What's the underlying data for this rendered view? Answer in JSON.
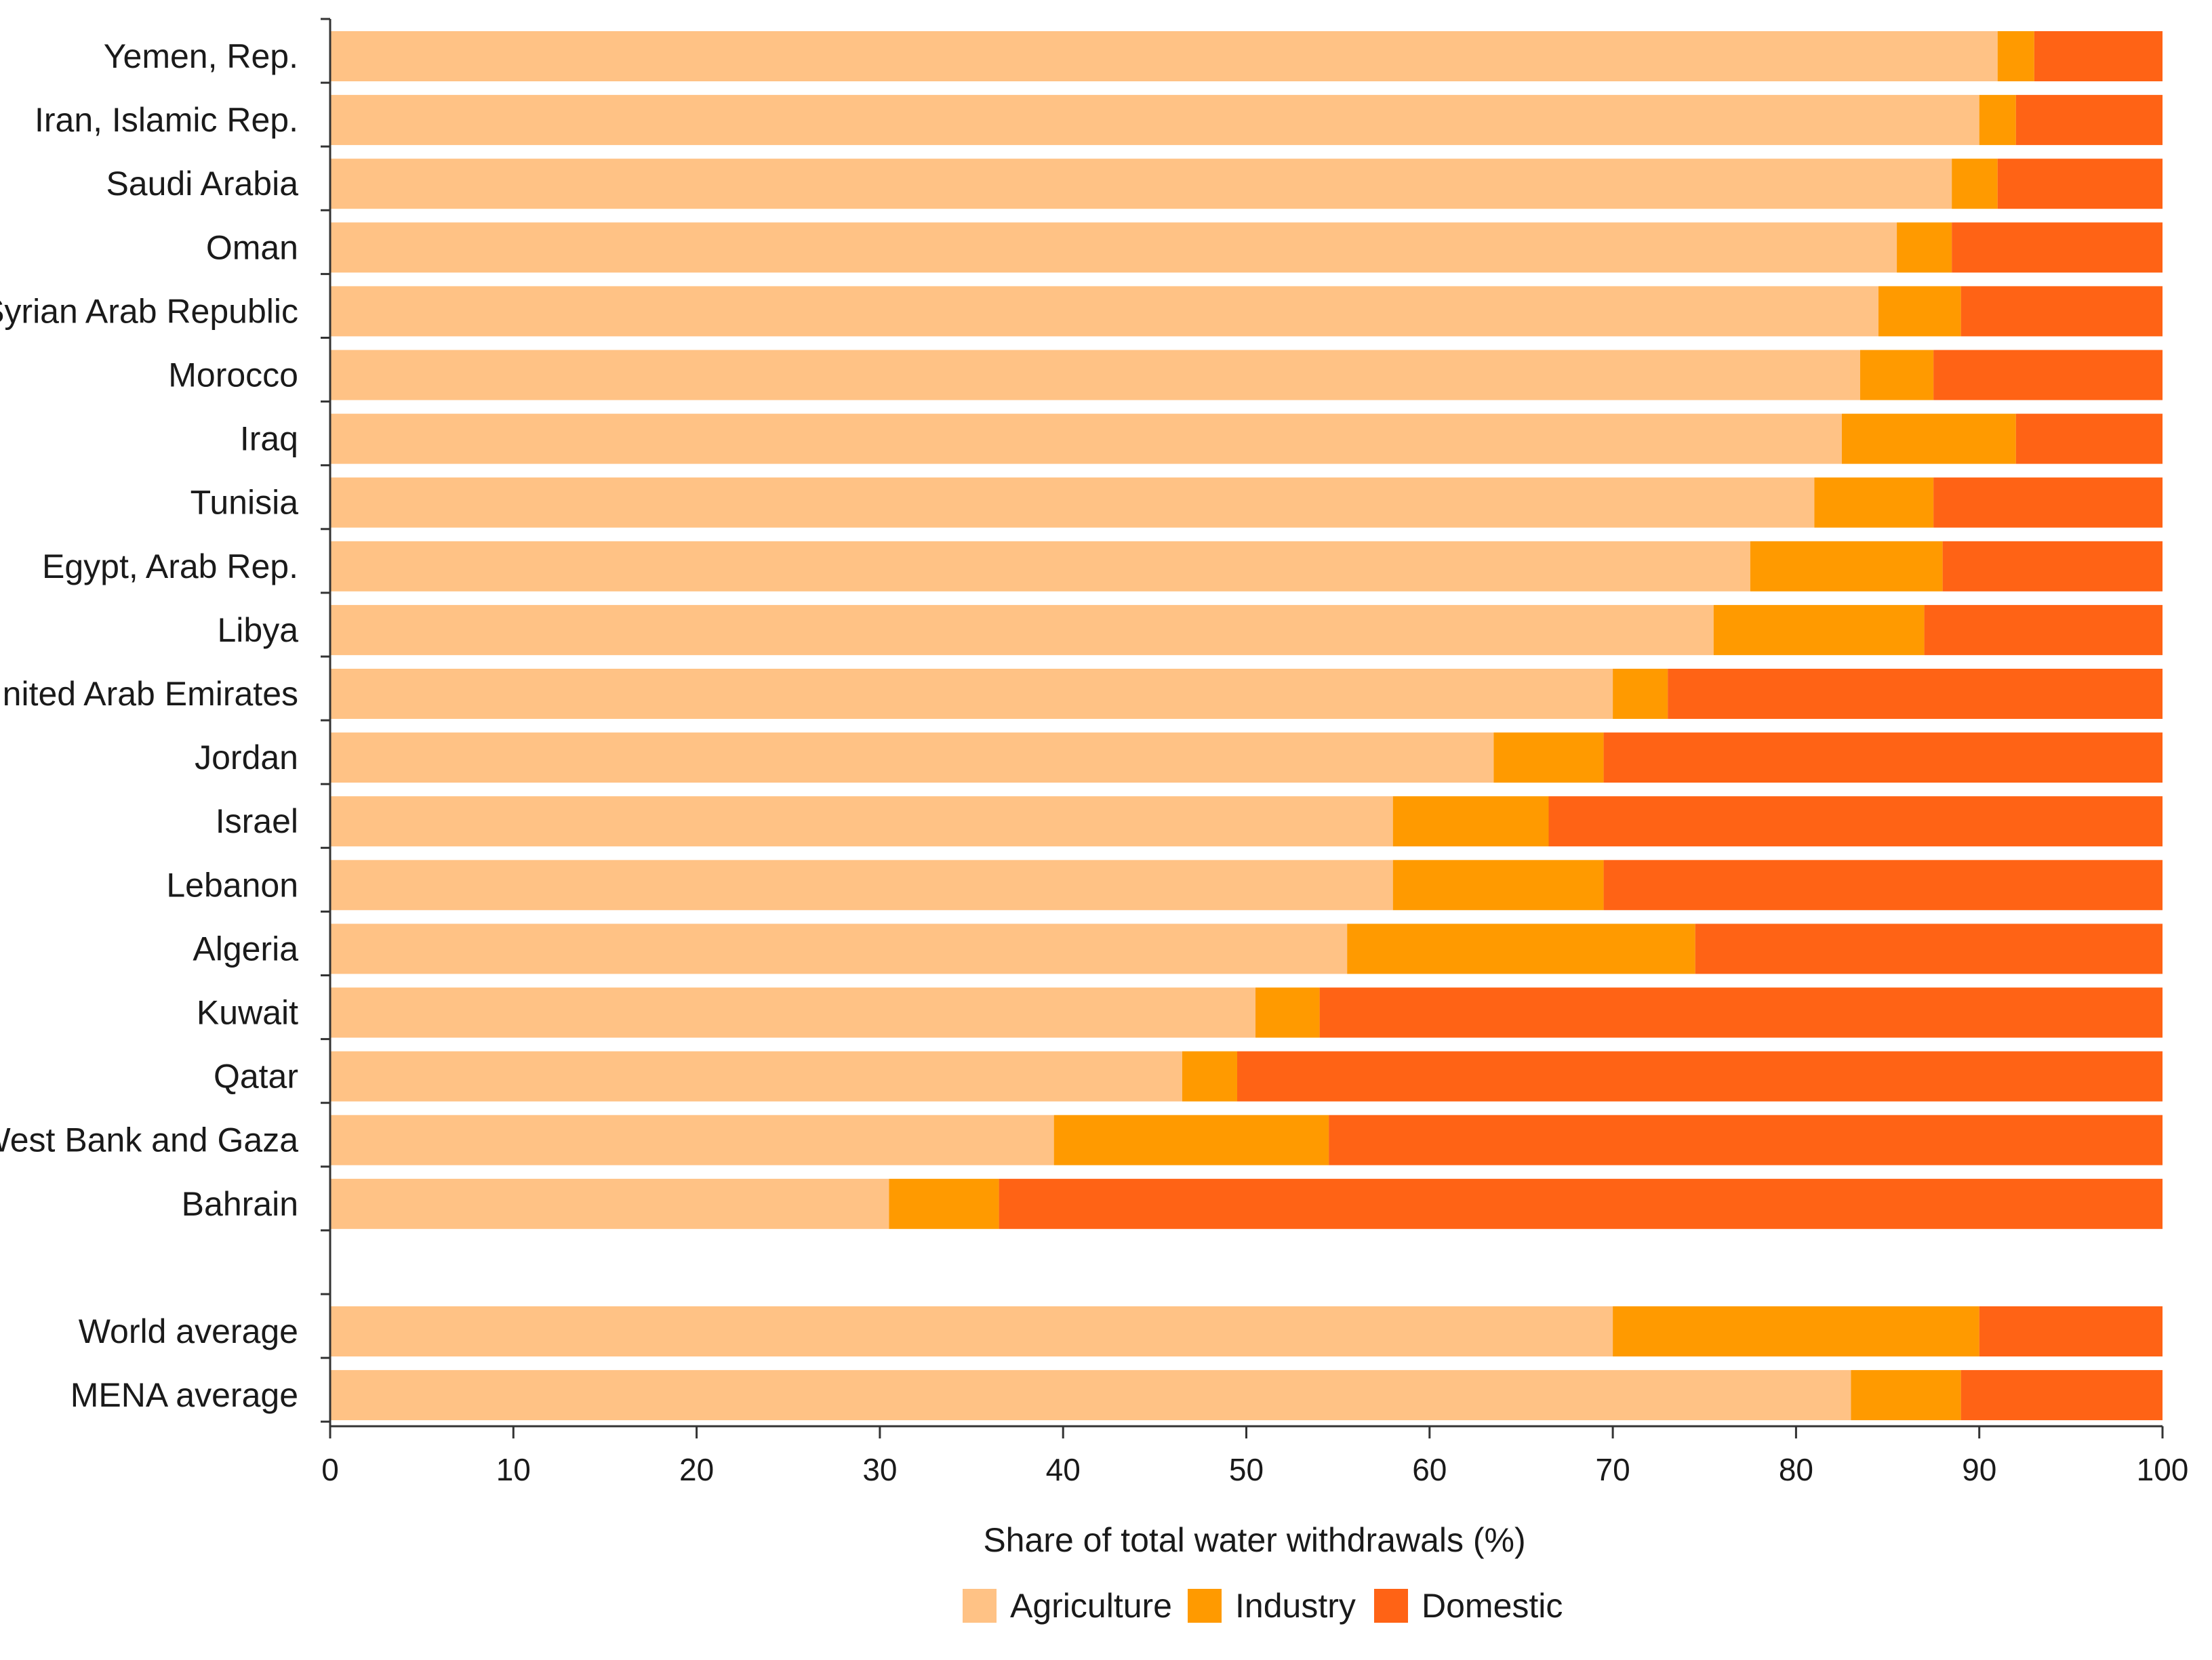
{
  "chart_data": {
    "type": "bar",
    "orientation": "horizontal",
    "stacked": true,
    "title": "",
    "xlabel": "Share  of total water withdrawals (%)",
    "ylabel": "",
    "xlim": [
      0,
      100
    ],
    "xticks": [
      0,
      10,
      20,
      30,
      40,
      50,
      60,
      70,
      80,
      90,
      100
    ],
    "grid": false,
    "legend_position": "bottom",
    "categories": [
      "Yemen, Rep.",
      "Iran, Islamic Rep.",
      "Saudi Arabia",
      "Oman",
      "Syrian Arab Republic",
      "Morocco",
      "Iraq",
      "Tunisia",
      "Egypt, Arab Rep.",
      "Libya",
      "United Arab Emirates",
      "Jordan",
      "Israel",
      "Lebanon",
      "Algeria",
      "Kuwait",
      "Qatar",
      "West Bank and Gaza",
      "Bahrain",
      "World average",
      "MENA average"
    ],
    "group_break_before": 19,
    "series": [
      {
        "name": "Agriculture",
        "color": "#FFC285",
        "values": [
          91.0,
          90.0,
          88.5,
          85.5,
          84.5,
          83.5,
          82.5,
          81.0,
          77.5,
          75.5,
          70.0,
          63.5,
          58.0,
          58.0,
          55.5,
          50.5,
          46.5,
          39.5,
          30.5,
          70.0,
          83.0
        ]
      },
      {
        "name": "Industry",
        "color": "#FF9A00",
        "values": [
          2.0,
          2.0,
          2.5,
          3.0,
          4.5,
          4.0,
          9.5,
          6.5,
          10.5,
          11.5,
          3.0,
          6.0,
          8.5,
          11.5,
          19.0,
          3.5,
          3.0,
          15.0,
          6.0,
          20.0,
          6.0
        ]
      },
      {
        "name": "Domestic",
        "color": "#FF6315",
        "values": [
          7.0,
          8.0,
          9.0,
          11.5,
          11.0,
          12.5,
          8.0,
          12.5,
          12.0,
          13.0,
          27.0,
          30.5,
          33.5,
          30.5,
          25.5,
          46.0,
          50.5,
          45.5,
          63.5,
          10.0,
          11.0
        ]
      }
    ]
  }
}
